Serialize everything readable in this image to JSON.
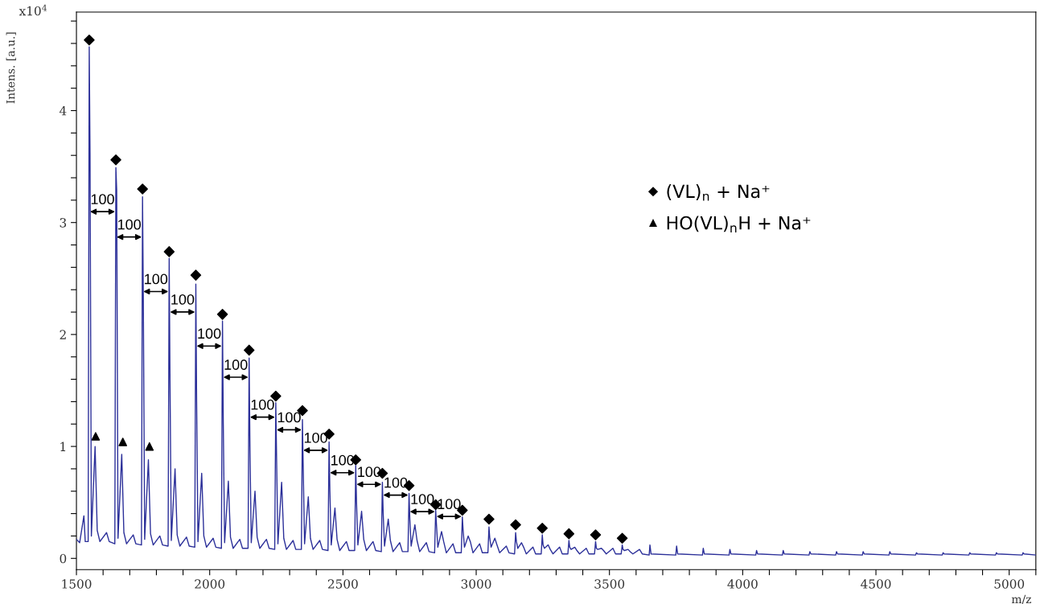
{
  "chart_data": {
    "type": "line",
    "xlabel": "m/z",
    "ylabel": "Intens. [a.u.]",
    "xlim": [
      1500,
      5100
    ],
    "ylim": [
      -0.1,
      4.88
    ],
    "xticks": [
      1500,
      {
        "value": 1600,
        "label": null
      },
      {
        "value": 1700,
        "label": null
      },
      {
        "value": 1800,
        "label": null
      },
      {
        "value": 1900,
        "label": null
      },
      2000,
      {
        "value": 2100,
        "label": null
      },
      {
        "value": 2200,
        "label": null
      },
      {
        "value": 2300,
        "label": null
      },
      {
        "value": 2400,
        "label": null
      },
      2500,
      {
        "value": 2600,
        "label": null
      },
      {
        "value": 2700,
        "label": null
      },
      {
        "value": 2800,
        "label": null
      },
      {
        "value": 2900,
        "label": null
      },
      3000,
      {
        "value": 3100,
        "label": null
      },
      {
        "value": 3200,
        "label": null
      },
      {
        "value": 3300,
        "label": null
      },
      {
        "value": 3400,
        "label": null
      },
      3500,
      {
        "value": 3600,
        "label": null
      },
      {
        "value": 3700,
        "label": null
      },
      {
        "value": 3800,
        "label": null
      },
      {
        "value": 3900,
        "label": null
      },
      4000,
      {
        "value": 4100,
        "label": null
      },
      {
        "value": 4200,
        "label": null
      },
      {
        "value": 4300,
        "label": null
      },
      {
        "value": 4400,
        "label": null
      },
      4500,
      {
        "value": 4600,
        "label": null
      },
      {
        "value": 4700,
        "label": null
      },
      {
        "value": 4800,
        "label": null
      },
      {
        "value": 4900,
        "label": null
      },
      5000,
      {
        "value": 5100,
        "label": null
      }
    ],
    "yticks": [
      0,
      {
        "value": 0.2,
        "label": null
      },
      {
        "value": 0.4,
        "label": null
      },
      {
        "value": 0.6,
        "label": null
      },
      {
        "value": 0.8,
        "label": null
      },
      1,
      {
        "value": 1.2,
        "label": null
      },
      {
        "value": 1.4,
        "label": null
      },
      {
        "value": 1.6,
        "label": null
      },
      {
        "value": 1.8,
        "label": null
      },
      2,
      {
        "value": 2.2,
        "label": null
      },
      {
        "value": 2.4,
        "label": null
      },
      {
        "value": 2.6,
        "label": null
      },
      {
        "value": 2.8,
        "label": null
      },
      3,
      {
        "value": 3.2,
        "label": null
      },
      {
        "value": 3.4,
        "label": null
      },
      {
        "value": 3.6,
        "label": null
      },
      {
        "value": 3.8,
        "label": null
      },
      4,
      {
        "value": 4.2,
        "label": null
      },
      {
        "value": 4.4,
        "label": null
      },
      {
        "value": 4.6,
        "label": null
      },
      {
        "value": 4.8,
        "label": null
      }
    ],
    "grid": false,
    "legend": "top right",
    "annotations": [
      "x10$^{4}$",
      "100",
      "100",
      "100",
      "100",
      "100",
      "100",
      "100",
      "100",
      "100",
      "100",
      "100",
      "100",
      "100",
      "100"
    ],
    "series": [
      {
        "type": "line",
        "color": "#2b2f99",
        "marker": "none",
        "line_style": "solid",
        "x": [
          1500,
          1512,
          1528,
          1533,
          1544,
          1548,
          1551,
          1556,
          1570,
          1578,
          1588,
          1613,
          1623,
          1644,
          1648,
          1651,
          1656,
          1670,
          1678,
          1688,
          1713,
          1723,
          1744,
          1748,
          1751,
          1756,
          1770,
          1778,
          1788,
          1813,
          1823,
          1844,
          1848,
          1851,
          1856,
          1870,
          1878,
          1888,
          1913,
          1923,
          1944,
          1948,
          1951,
          1956,
          1970,
          1978,
          1988,
          2013,
          2023,
          2044,
          2048,
          2051,
          2056,
          2070,
          2078,
          2088,
          2113,
          2123,
          2144,
          2148,
          2151,
          2156,
          2170,
          2178,
          2188,
          2213,
          2223,
          2244,
          2248,
          2251,
          2256,
          2270,
          2278,
          2288,
          2313,
          2323,
          2344,
          2348,
          2351,
          2356,
          2370,
          2378,
          2388,
          2413,
          2423,
          2444,
          2448,
          2451,
          2456,
          2470,
          2478,
          2488,
          2513,
          2523,
          2544,
          2548,
          2551,
          2556,
          2570,
          2578,
          2588,
          2613,
          2623,
          2644,
          2648,
          2651,
          2656,
          2670,
          2678,
          2688,
          2713,
          2723,
          2744,
          2748,
          2751,
          2756,
          2770,
          2778,
          2788,
          2813,
          2823,
          2844,
          2848,
          2851,
          2856,
          2870,
          2878,
          2888,
          2913,
          2923,
          2944,
          2948,
          2951,
          2956,
          2970,
          2978,
          2988,
          3013,
          3023,
          3044,
          3048,
          3051,
          3056,
          3070,
          3078,
          3088,
          3113,
          3123,
          3144,
          3148,
          3151,
          3156,
          3170,
          3178,
          3188,
          3213,
          3223,
          3244,
          3248,
          3251,
          3256,
          3270,
          3278,
          3288,
          3313,
          3323,
          3344,
          3348,
          3351,
          3356,
          3370,
          3378,
          3388,
          3413,
          3423,
          3444,
          3448,
          3451,
          3456,
          3470,
          3478,
          3488,
          3513,
          3523,
          3544,
          3548,
          3551,
          3556,
          3570,
          3578,
          3588,
          3613,
          3623,
          3649,
          3652,
          3656,
          3749,
          3752,
          3756,
          3849,
          3852,
          3856,
          3949,
          3952,
          3956,
          4049,
          4052,
          4056,
          4149,
          4152,
          4156,
          4249,
          4252,
          4256,
          4349,
          4352,
          4356,
          4449,
          4452,
          4456,
          4549,
          4552,
          4556,
          4649,
          4652,
          4656,
          4749,
          4752,
          4756,
          4849,
          4852,
          4856,
          4949,
          4952,
          4956,
          5049,
          5052,
          5056,
          5100
        ],
        "values": [
          0.17,
          0.14,
          0.38,
          0.15,
          0.15,
          4.57,
          3.62,
          0.2,
          1.0,
          0.25,
          0.15,
          0.23,
          0.15,
          0.13,
          3.49,
          3.29,
          0.18,
          0.93,
          0.23,
          0.13,
          0.21,
          0.13,
          0.12,
          3.23,
          2.3,
          0.17,
          0.88,
          0.22,
          0.12,
          0.2,
          0.12,
          0.11,
          2.68,
          1.6,
          0.16,
          0.8,
          0.21,
          0.11,
          0.19,
          0.11,
          0.1,
          2.45,
          1.4,
          0.15,
          0.76,
          0.2,
          0.1,
          0.18,
          0.1,
          0.09,
          2.12,
          1.2,
          0.14,
          0.69,
          0.19,
          0.09,
          0.17,
          0.09,
          0.09,
          1.79,
          1.0,
          0.14,
          0.6,
          0.19,
          0.09,
          0.17,
          0.09,
          0.08,
          1.39,
          0.9,
          0.13,
          0.68,
          0.18,
          0.08,
          0.16,
          0.08,
          0.08,
          1.24,
          0.8,
          0.13,
          0.55,
          0.18,
          0.08,
          0.16,
          0.08,
          0.07,
          1.04,
          0.6,
          0.12,
          0.45,
          0.17,
          0.07,
          0.15,
          0.07,
          0.07,
          0.83,
          0.5,
          0.12,
          0.42,
          0.17,
          0.07,
          0.15,
          0.07,
          0.06,
          0.68,
          0.4,
          0.11,
          0.35,
          0.16,
          0.06,
          0.14,
          0.06,
          0.06,
          0.58,
          0.35,
          0.11,
          0.3,
          0.16,
          0.06,
          0.14,
          0.06,
          0.05,
          0.43,
          0.3,
          0.1,
          0.24,
          0.15,
          0.05,
          0.13,
          0.05,
          0.05,
          0.37,
          0.25,
          0.1,
          0.2,
          0.15,
          0.05,
          0.13,
          0.05,
          0.05,
          0.28,
          0.18,
          0.1,
          0.18,
          0.12,
          0.05,
          0.11,
          0.05,
          0.04,
          0.23,
          0.15,
          0.09,
          0.14,
          0.1,
          0.04,
          0.1,
          0.04,
          0.04,
          0.21,
          0.12,
          0.09,
          0.12,
          0.08,
          0.04,
          0.1,
          0.04,
          0.04,
          0.16,
          0.1,
          0.08,
          0.1,
          0.07,
          0.04,
          0.09,
          0.04,
          0.04,
          0.15,
          0.09,
          0.08,
          0.09,
          0.07,
          0.04,
          0.09,
          0.04,
          0.04,
          0.12,
          0.08,
          0.07,
          0.08,
          0.06,
          0.04,
          0.08,
          0.04,
          0.03,
          0.12,
          0.04,
          0.03,
          0.11,
          0.04,
          0.03,
          0.09,
          0.04,
          0.03,
          0.08,
          0.04,
          0.03,
          0.07,
          0.04,
          0.03,
          0.07,
          0.04,
          0.03,
          0.06,
          0.04,
          0.03,
          0.06,
          0.04,
          0.03,
          0.06,
          0.04,
          0.03,
          0.06,
          0.04,
          0.03,
          0.05,
          0.04,
          0.03,
          0.05,
          0.04,
          0.03,
          0.05,
          0.04,
          0.03,
          0.05,
          0.04,
          0.03,
          0.05,
          0.04,
          0.03
        ]
      },
      {
        "type": "scatter",
        "name": "(VL)$_{n}$ + Na⁺",
        "color": "#000000",
        "marker": "diamond",
        "x": [
          1548,
          1648,
          1748,
          1848,
          1948,
          2048,
          2148,
          2248,
          2348,
          2448,
          2548,
          2648,
          2748,
          2848,
          2948,
          3048,
          3148,
          3248,
          3348,
          3448,
          3548
        ],
        "values": [
          4.63,
          3.56,
          3.3,
          2.74,
          2.53,
          2.18,
          1.86,
          1.45,
          1.32,
          1.11,
          0.88,
          0.76,
          0.65,
          0.48,
          0.43,
          0.35,
          0.3,
          0.27,
          0.22,
          0.21,
          0.18
        ]
      },
      {
        "type": "scatter",
        "name": "HO(VL)$_{n}$H + Na⁺",
        "color": "#000000",
        "marker": "triangle",
        "x": [
          1572,
          1674,
          1774
        ],
        "values": [
          1.09,
          1.04,
          1.0
        ]
      }
    ]
  }
}
